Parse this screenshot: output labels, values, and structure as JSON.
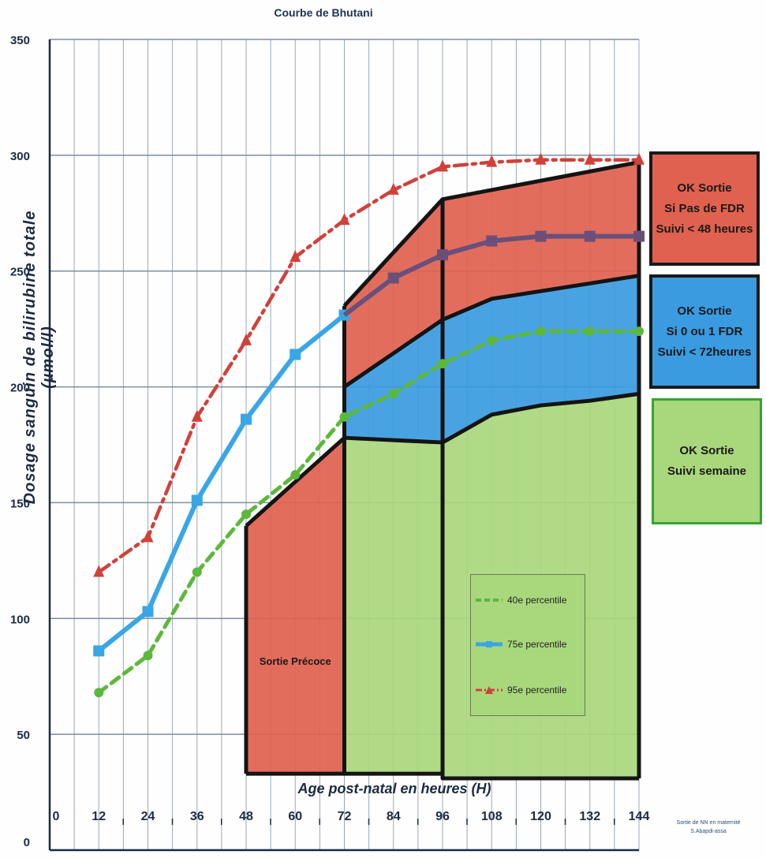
{
  "chart_data": {
    "type": "line",
    "title": "Courbe de Bhutani",
    "xlabel": "Age post-natal en heures (H)",
    "ylabel": "Dosage sanguin de bilirubine totale (µmol/l)",
    "xlim": [
      0,
      144
    ],
    "ylim": [
      0,
      350
    ],
    "x_ticks": [
      0,
      12,
      24,
      36,
      48,
      60,
      72,
      84,
      96,
      108,
      120,
      132,
      144
    ],
    "y_ticks": [
      0,
      50,
      100,
      150,
      200,
      250,
      300,
      350
    ],
    "grid": true,
    "legend_position": "bottom-right inside",
    "series": [
      {
        "name": "40e percentile",
        "style": "dashed",
        "color": "#5cb83a",
        "x": [
          12,
          24,
          36,
          48,
          60,
          72,
          84,
          96,
          108,
          120,
          132,
          144
        ],
        "y": [
          68,
          84,
          120,
          145,
          162,
          187,
          197,
          210,
          220,
          224,
          224,
          224
        ]
      },
      {
        "name": "75e percentile",
        "style": "solid",
        "color": "#39a6e6",
        "x": [
          12,
          24,
          36,
          48,
          60,
          72,
          84,
          96,
          108,
          120,
          132,
          144
        ],
        "y": [
          86,
          103,
          151,
          186,
          214,
          231,
          247,
          257,
          263,
          265,
          265,
          265
        ]
      },
      {
        "name": "95e percentile",
        "style": "dash-dot",
        "color": "#d0413a",
        "x": [
          12,
          24,
          36,
          48,
          60,
          72,
          84,
          96,
          108,
          120,
          132,
          144
        ],
        "y": [
          120,
          135,
          187,
          220,
          256,
          272,
          285,
          295,
          297,
          298,
          298,
          298
        ]
      }
    ],
    "zones": [
      {
        "label": "Sortie Précoce",
        "color": "#e0614f"
      },
      {
        "label": "",
        "color": "#a9d77c"
      },
      {
        "label": "",
        "color": "#3a9be0"
      },
      {
        "label": "",
        "color": "#e0614f"
      }
    ]
  },
  "side_boxes": [
    {
      "lines": [
        "OK Sortie",
        "Si Pas de FDR",
        "Suivi < 48 heures"
      ],
      "color": "#e0614f"
    },
    {
      "lines": [
        "OK Sortie",
        "Si 0 ou 1 FDR",
        "Suivi < 72heures"
      ],
      "color": "#3a9be0"
    },
    {
      "lines": [
        "OK Sortie",
        "Suivi semaine"
      ],
      "color": "#a9d77c"
    }
  ],
  "legend": {
    "items": [
      "40e percentile",
      "75e percentile",
      "95e percentile"
    ]
  },
  "credit": {
    "lines": [
      "Sortie de NN en maternité",
      "S.Abapdi-assa"
    ]
  }
}
